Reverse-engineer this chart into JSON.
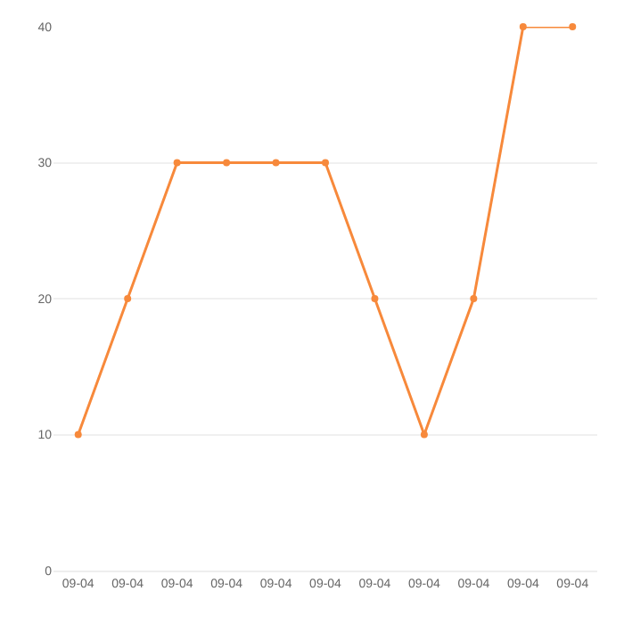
{
  "chart_data": {
    "type": "line",
    "categories": [
      "09-04",
      "09-04",
      "09-04",
      "09-04",
      "09-04",
      "09-04",
      "09-04",
      "09-04",
      "09-04",
      "09-04",
      "09-04"
    ],
    "series": [
      {
        "color": "#f7893b",
        "values": [
          10,
          20,
          30,
          30,
          30,
          30,
          20,
          10,
          20,
          40,
          40
        ]
      }
    ],
    "ylim": [
      0,
      40
    ],
    "yticks": [
      0,
      10,
      20,
      30,
      40
    ],
    "grid": "y",
    "marker": "circle",
    "line_style": "solid",
    "legend": false
  }
}
